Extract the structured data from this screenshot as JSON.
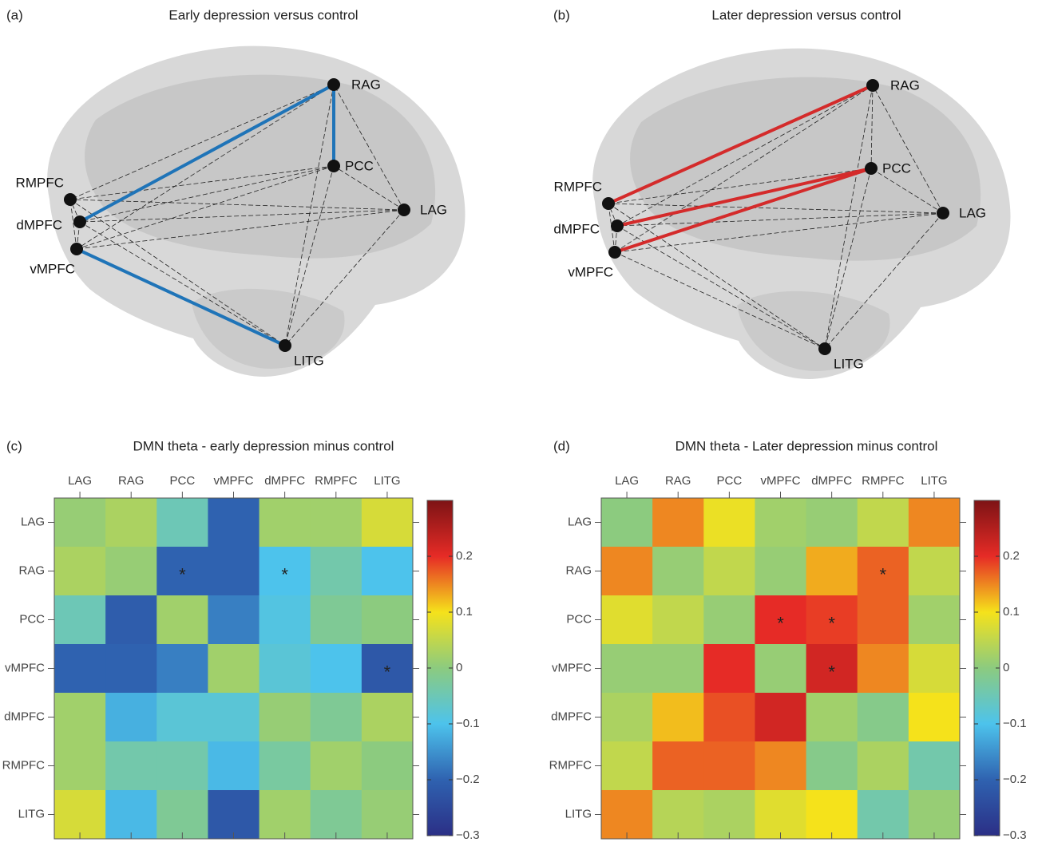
{
  "diagrams": [
    {
      "panel": "(a)",
      "title": "Early depression versus control",
      "nodes": [
        "LAG",
        "RAG",
        "PCC",
        "vMPFC",
        "dMPFC",
        "RMPFC",
        "LITG"
      ],
      "highlight_color": "#1f74b8"
    },
    {
      "panel": "(b)",
      "title": "Later depression versus control",
      "nodes": [
        "LAG",
        "RAG",
        "PCC",
        "vMPFC",
        "dMPFC",
        "RMPFC",
        "LITG"
      ],
      "highlight_color": "#d42b2b"
    }
  ],
  "chart_data": [
    {
      "type": "heatmap",
      "panel": "(c)",
      "title": "DMN theta - early depression minus control",
      "x_categories": [
        "LAG",
        "RAG",
        "PCC",
        "vMPFC",
        "dMPFC",
        "RMPFC",
        "LITG"
      ],
      "y_categories": [
        "LAG",
        "RAG",
        "PCC",
        "vMPFC",
        "dMPFC",
        "RMPFC",
        "LITG"
      ],
      "values": [
        [
          0.01,
          0.03,
          -0.05,
          -0.2,
          0.02,
          0.02,
          0.07
        ],
        [
          0.03,
          0.01,
          -0.2,
          -0.2,
          -0.1,
          -0.04,
          -0.1
        ],
        [
          -0.05,
          -0.21,
          0.02,
          -0.17,
          -0.09,
          -0.02,
          0
        ],
        [
          -0.2,
          -0.2,
          -0.17,
          0.02,
          -0.08,
          -0.1,
          -0.22
        ],
        [
          0.02,
          -0.12,
          -0.08,
          -0.08,
          0.01,
          -0.02,
          0.03
        ],
        [
          0.02,
          -0.04,
          -0.04,
          -0.11,
          -0.03,
          0.02,
          0
        ],
        [
          0.07,
          -0.11,
          -0.02,
          -0.22,
          0.02,
          -0.02,
          0.01
        ]
      ],
      "cell_labels": [
        [
          null,
          null,
          null,
          null,
          null,
          null,
          null
        ],
        [
          null,
          null,
          "*",
          null,
          "*",
          null,
          null
        ],
        [
          null,
          null,
          null,
          null,
          null,
          null,
          null
        ],
        [
          null,
          null,
          null,
          null,
          null,
          null,
          "*"
        ],
        [
          null,
          null,
          null,
          null,
          null,
          null,
          null
        ],
        [
          null,
          null,
          null,
          null,
          null,
          null,
          null
        ],
        [
          null,
          null,
          null,
          null,
          null,
          null,
          null
        ]
      ],
      "clim": [
        -0.3,
        0.3
      ],
      "colorbar_ticks": [
        {
          "value": -0.3,
          "label": "−0.3"
        },
        {
          "value": -0.2,
          "label": "−0.2"
        },
        {
          "value": -0.1,
          "label": "−0.1"
        },
        0,
        0.1,
        0.2
      ],
      "colorscale": [
        "#2b2f86",
        "#2f62b0",
        "#4dc3ec",
        "#8ccb7f",
        "#f5e21b",
        "#e62b26",
        "#7d1315"
      ]
    },
    {
      "type": "heatmap",
      "panel": "(d)",
      "title": "DMN theta - Later depression minus control",
      "x_categories": [
        "LAG",
        "RAG",
        "PCC",
        "vMPFC",
        "dMPFC",
        "RMPFC",
        "LITG"
      ],
      "y_categories": [
        "LAG",
        "RAG",
        "PCC",
        "vMPFC",
        "dMPFC",
        "RMPFC",
        "LITG"
      ],
      "values": [
        [
          0,
          0.15,
          0.09,
          0.02,
          0.01,
          0.05,
          0.15
        ],
        [
          0.15,
          0.01,
          0.05,
          0.01,
          0.13,
          0.17,
          0.05
        ],
        [
          0.08,
          0.05,
          0.01,
          0.2,
          0.19,
          0.17,
          0.02
        ],
        [
          0.01,
          0.01,
          0.2,
          0.01,
          0.22,
          0.15,
          0.07
        ],
        [
          0.03,
          0.12,
          0.18,
          0.22,
          0.02,
          -0.01,
          0.1
        ],
        [
          0.05,
          0.17,
          0.17,
          0.15,
          -0.01,
          0.03,
          -0.04
        ],
        [
          0.15,
          0.04,
          0.03,
          0.08,
          0.1,
          -0.04,
          0.01
        ]
      ],
      "cell_labels": [
        [
          null,
          null,
          null,
          null,
          null,
          null,
          null
        ],
        [
          null,
          null,
          null,
          null,
          null,
          "*",
          null
        ],
        [
          null,
          null,
          null,
          "*",
          "*",
          null,
          null
        ],
        [
          null,
          null,
          null,
          null,
          "*",
          null,
          null
        ],
        [
          null,
          null,
          null,
          null,
          null,
          null,
          null
        ],
        [
          null,
          null,
          null,
          null,
          null,
          null,
          null
        ],
        [
          null,
          null,
          null,
          null,
          null,
          null,
          null
        ]
      ],
      "clim": [
        -0.3,
        0.3
      ],
      "colorbar_ticks": [
        {
          "value": -0.3,
          "label": "−0.3"
        },
        {
          "value": -0.2,
          "label": "−0.2"
        },
        {
          "value": -0.1,
          "label": "−0.1"
        },
        0,
        0.1,
        0.2
      ],
      "colorscale": [
        "#2b2f86",
        "#2f62b0",
        "#4dc3ec",
        "#8ccb7f",
        "#f5e21b",
        "#e62b26",
        "#7d1315"
      ]
    }
  ]
}
